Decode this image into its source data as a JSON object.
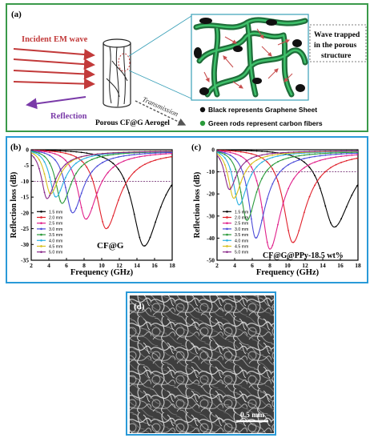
{
  "panel_a": {
    "label": "(a)",
    "incident": "Incident EM wave",
    "reflection": "Reflection",
    "transmission": "Transmission",
    "aerogel": "Porous CF@G Aerogel",
    "wave_trapped_1": "Wave trapped",
    "wave_trapped_2": "in  the porous",
    "wave_trapped_3": "structure",
    "legend_black": "Black represents Graphene Sheet",
    "legend_green": "Green rods represent carbon fibers"
  },
  "panel_d": {
    "label": "(d)",
    "scale_bar": "0.5 mm"
  },
  "colors": {
    "green_border": "#3a9a4a",
    "blue_border": "#2a9ad8",
    "incident_red": "#c23a3a",
    "reflection_purple": "#7a3aa8"
  },
  "chart_data": [
    {
      "type": "line",
      "panel_label": "(b)",
      "annotation": "CF@G",
      "xlabel": "Frequency (GHz)",
      "ylabel": "Reflection loss (dB)",
      "xlim": [
        2,
        18
      ],
      "ylim": [
        -35,
        0
      ],
      "xticks": [
        2,
        4,
        6,
        8,
        10,
        12,
        14,
        16,
        18
      ],
      "yticks": [
        0,
        -5,
        -10,
        -15,
        -20,
        -25,
        -30,
        -35
      ],
      "reference_line": -10,
      "legend_placement": "lower-left",
      "series": [
        {
          "name": "1.5 mm",
          "color": "#000000",
          "min_x": 14.8,
          "min_y": -30.5
        },
        {
          "name": "2.0 mm",
          "color": "#e0202a",
          "min_x": 10.5,
          "min_y": -25.0
        },
        {
          "name": "2.5 mm",
          "color": "#e0208a",
          "min_x": 8.2,
          "min_y": -22.0
        },
        {
          "name": "3.0 mm",
          "color": "#4a4ad8",
          "min_x": 6.7,
          "min_y": -20.0
        },
        {
          "name": "3.5 mm",
          "color": "#2a9a3a",
          "min_x": 5.5,
          "min_y": -17.0
        },
        {
          "name": "4.0 mm",
          "color": "#2ab0e0",
          "min_x": 4.8,
          "min_y": -15.0
        },
        {
          "name": "4.5 mm",
          "color": "#d8c020",
          "min_x": 4.2,
          "min_y": -14.0
        },
        {
          "name": "5.0 mm",
          "color": "#8a2a8a",
          "min_x": 3.8,
          "min_y": -15.5
        }
      ]
    },
    {
      "type": "line",
      "panel_label": "(c)",
      "annotation": "CF@G@PPy-18.5  wt%",
      "xlabel": "Frequency (GHz)",
      "ylabel": "Reflection loss (dB)",
      "xlim": [
        2,
        18
      ],
      "ylim": [
        -50,
        0
      ],
      "xticks": [
        2,
        4,
        6,
        8,
        10,
        12,
        14,
        16,
        18
      ],
      "yticks": [
        0,
        -10,
        -20,
        -30,
        -40,
        -50
      ],
      "reference_line": -10,
      "legend_placement": "lower-left",
      "series": [
        {
          "name": "1.5 mm",
          "color": "#000000",
          "min_x": 15.3,
          "min_y": -35.0
        },
        {
          "name": "2.0 mm",
          "color": "#e0202a",
          "min_x": 10.6,
          "min_y": -42.0
        },
        {
          "name": "2.5 mm",
          "color": "#e0208a",
          "min_x": 8.0,
          "min_y": -45.0
        },
        {
          "name": "3.0 mm",
          "color": "#4a4ad8",
          "min_x": 6.4,
          "min_y": -40.0
        },
        {
          "name": "3.5 mm",
          "color": "#2a9a3a",
          "min_x": 5.4,
          "min_y": -32.0
        },
        {
          "name": "4.0 mm",
          "color": "#2ab0e0",
          "min_x": 4.5,
          "min_y": -25.0
        },
        {
          "name": "4.5 mm",
          "color": "#d8c020",
          "min_x": 3.9,
          "min_y": -22.0
        },
        {
          "name": "5.0 mm",
          "color": "#8a2a8a",
          "min_x": 3.4,
          "min_y": -18.0
        }
      ]
    }
  ]
}
